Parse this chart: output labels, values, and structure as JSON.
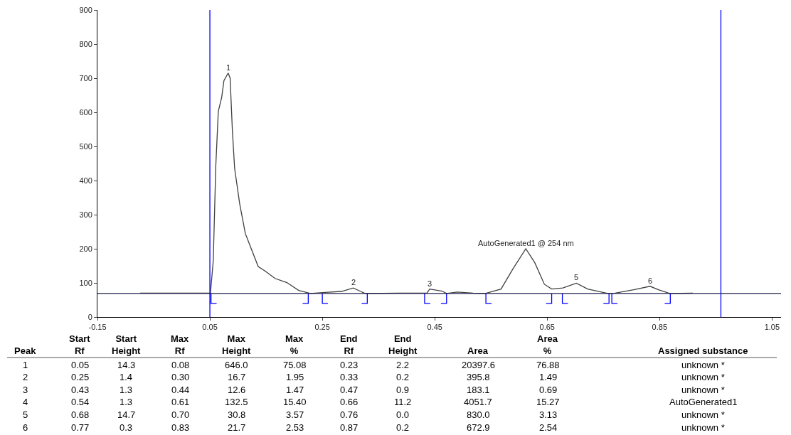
{
  "chart_data": {
    "type": "line",
    "xlim": [
      -0.15,
      1.066
    ],
    "ylim": [
      0,
      900
    ],
    "xticks": [
      -0.15,
      0.05,
      0.25,
      0.45,
      0.65,
      0.85,
      1.05
    ],
    "yticks": [
      0,
      100,
      200,
      300,
      400,
      500,
      600,
      700,
      800,
      900
    ],
    "marker": "none",
    "line_style": "solid",
    "series": [
      {
        "color": "#404040",
        "x": [
          -0.074,
          0.051,
          0.056,
          0.0605,
          0.065,
          0.071,
          0.075,
          0.0825,
          0.086,
          0.09,
          0.094,
          0.103,
          0.113,
          0.122,
          0.136,
          0.149,
          0.166,
          0.187,
          0.208,
          0.229,
          0.255,
          0.284,
          0.305,
          0.326,
          0.331,
          0.385,
          0.436,
          0.441,
          0.463,
          0.471,
          0.49,
          0.518,
          0.54,
          0.568,
          0.589,
          0.612,
          0.628,
          0.645,
          0.658,
          0.678,
          0.702,
          0.722,
          0.758,
          0.771,
          0.804,
          0.833,
          0.848,
          0.868,
          0.909
        ],
        "values": [
          70,
          70,
          165,
          443,
          603,
          644,
          693,
          715,
          700,
          547,
          436,
          332,
          245,
          207,
          148,
          134,
          113,
          101,
          78,
          69,
          72,
          75,
          85,
          69,
          69,
          70,
          70,
          82,
          76,
          69,
          73,
          70,
          69,
          82,
          141,
          200,
          159,
          96,
          82,
          85,
          99,
          82,
          69,
          70,
          80,
          90,
          80,
          69,
          70
        ]
      },
      {
        "color": "#0000ff",
        "x": [
          0.052,
          0.052,
          0.062,
          null,
          0.225,
          0.225,
          0.215,
          null,
          0.25,
          0.25,
          0.26,
          null,
          0.33,
          0.33,
          0.32,
          null,
          0.432,
          0.432,
          0.442,
          null,
          0.471,
          0.471,
          0.461,
          null,
          0.541,
          0.541,
          0.551,
          null,
          0.658,
          0.658,
          0.648,
          null,
          0.677,
          0.677,
          0.687,
          null,
          0.76,
          0.76,
          0.75,
          null,
          0.765,
          0.765,
          0.775,
          null,
          0.869,
          0.869,
          0.859
        ],
        "values": [
          69,
          40,
          40,
          null,
          69,
          40,
          40,
          null,
          69,
          40,
          40,
          null,
          69,
          40,
          40,
          null,
          69,
          40,
          40,
          null,
          69,
          40,
          40,
          null,
          69,
          40,
          40,
          null,
          69,
          40,
          40,
          null,
          69,
          40,
          40,
          null,
          69,
          40,
          40,
          null,
          69,
          40,
          40,
          null,
          69,
          40,
          40
        ]
      }
    ],
    "ref_lines": [
      {
        "axis": "x",
        "value": 0.05,
        "color": "#0000ff"
      },
      {
        "axis": "x",
        "value": 0.959,
        "color": "#0000ff"
      },
      {
        "axis": "y",
        "value": 69,
        "color": "#1a1a4a"
      }
    ],
    "annotations": [
      {
        "text": "1",
        "x": 0.083,
        "y": 715
      },
      {
        "text": "2",
        "x": 0.305,
        "y": 85
      },
      {
        "text": "3",
        "x": 0.441,
        "y": 82
      },
      {
        "text": "AutoGenerated1 @ 254 nm",
        "x": 0.612,
        "y": 200
      },
      {
        "text": "5",
        "x": 0.702,
        "y": 99
      },
      {
        "text": "6",
        "x": 0.833,
        "y": 90
      },
      "Peak",
      "Start\nRf",
      "Start\nHeight",
      "Max\nRf",
      "Max\nHeight",
      "Max\n%",
      "End\nRf",
      "End\nHeight",
      "Area",
      "Area\n%",
      "Assigned substance",
      "1",
      "0.05",
      "14.3",
      "0.08",
      "646.0",
      "75.08",
      "0.23",
      "2.2",
      "20397.6",
      "76.88",
      "unknown *",
      "2",
      "0.25",
      "1.4",
      "0.30",
      "16.7",
      "1.95",
      "0.33",
      "0.2",
      "395.8",
      "1.49",
      "unknown *",
      "3",
      "0.43",
      "1.3",
      "0.44",
      "12.6",
      "1.47",
      "0.47",
      "0.9",
      "183.1",
      "0.69",
      "unknown *",
      "4",
      "0.54",
      "1.3",
      "0.61",
      "132.5",
      "15.40",
      "0.66",
      "11.2",
      "4051.7",
      "15.27",
      "AutoGenerated1",
      "5",
      "0.68",
      "14.7",
      "0.70",
      "30.8",
      "3.57",
      "0.76",
      "0.0",
      "830.0",
      "3.13",
      "unknown *",
      "6",
      "0.77",
      "0.3",
      "0.83",
      "21.7",
      "2.53",
      "0.87",
      "0.2",
      "672.9",
      "2.54",
      "unknown *"
    ]
  }
}
